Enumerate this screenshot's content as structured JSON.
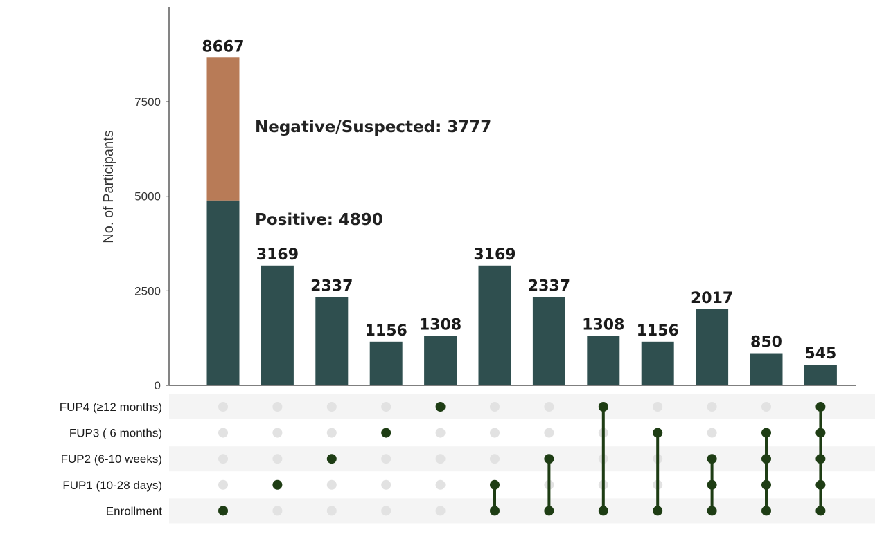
{
  "chart_data": {
    "type": "bar",
    "ylabel": "No. of Participants",
    "ylim": [
      0,
      10000
    ],
    "yticks": [
      0,
      2500,
      5000,
      7500
    ],
    "bars": [
      {
        "label": "8667",
        "segments": [
          4890,
          3777
        ]
      },
      {
        "label": "3169",
        "segments": [
          3169
        ]
      },
      {
        "label": "2337",
        "segments": [
          2337
        ]
      },
      {
        "label": "1156",
        "segments": [
          1156
        ]
      },
      {
        "label": "1308",
        "segments": [
          1308
        ]
      },
      {
        "label": "3169",
        "segments": [
          3169
        ]
      },
      {
        "label": "2337",
        "segments": [
          2337
        ]
      },
      {
        "label": "1308",
        "segments": [
          1308
        ]
      },
      {
        "label": "1156",
        "segments": [
          1156
        ]
      },
      {
        "label": "2017",
        "segments": [
          2017
        ]
      },
      {
        "label": "850",
        "segments": [
          850
        ]
      },
      {
        "label": "545",
        "segments": [
          545
        ]
      }
    ],
    "annotations": [
      "Negative/Suspected: 3777",
      "Positive: 4890"
    ],
    "sets": [
      "FUP4 (≥12 months)",
      "FUP3 ( 6 months)",
      "FUP2 (6-10 weeks)",
      "FUP1 (10-28 days)",
      "Enrollment"
    ],
    "matrix": [
      [
        "Enrollment"
      ],
      [
        "FUP1 (10-28 days)"
      ],
      [
        "FUP2 (6-10 weeks)"
      ],
      [
        "FUP3 ( 6 months)"
      ],
      [
        "FUP4 (≥12 months)"
      ],
      [
        "Enrollment",
        "FUP1 (10-28 days)"
      ],
      [
        "Enrollment",
        "FUP2 (6-10 weeks)"
      ],
      [
        "Enrollment",
        "FUP4 (≥12 months)"
      ],
      [
        "Enrollment",
        "FUP3 ( 6 months)"
      ],
      [
        "Enrollment",
        "FUP1 (10-28 days)",
        "FUP2 (6-10 weeks)"
      ],
      [
        "Enrollment",
        "FUP1 (10-28 days)",
        "FUP2 (6-10 weeks)",
        "FUP3 ( 6 months)"
      ],
      [
        "Enrollment",
        "FUP1 (10-28 days)",
        "FUP2 (6-10 weeks)",
        "FUP3 ( 6 months)",
        "FUP4 (≥12 months)"
      ]
    ],
    "colors": {
      "positive": "#2f4f4f",
      "negative": "#b87b57",
      "dot_active": "#1e3d14",
      "dot_inactive": "#e2e2e2",
      "row_band": "#f4f4f4"
    }
  }
}
